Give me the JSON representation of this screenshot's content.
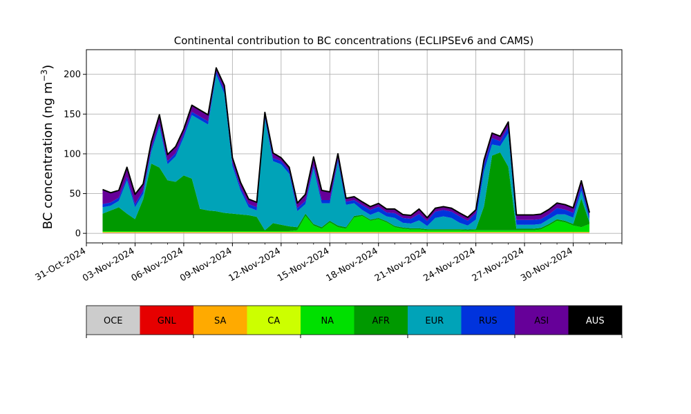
{
  "chart_data": {
    "type": "area",
    "stacked": true,
    "title": "Continental contribution to BC concentrations (ECLIPSEv6 and CAMS)",
    "ylabel": "BC concentration (ng m",
    "ylabel_sup": "−3",
    "ylabel_close": ")",
    "xlabel": "",
    "grid": true,
    "x_start": "2024-11-01",
    "x_end": "2024-12-01",
    "xlim": [
      "2024-10-31",
      "2024-12-03"
    ],
    "ylim": [
      -12,
      231
    ],
    "yticks": [
      0,
      50,
      100,
      150,
      200
    ],
    "xticks": [
      {
        "label": "31-Oct-2024",
        "date": "2024-10-31"
      },
      {
        "label": "03-Nov-2024",
        "date": "2024-11-03"
      },
      {
        "label": "06-Nov-2024",
        "date": "2024-11-06"
      },
      {
        "label": "09-Nov-2024",
        "date": "2024-11-09"
      },
      {
        "label": "12-Nov-2024",
        "date": "2024-11-12"
      },
      {
        "label": "15-Nov-2024",
        "date": "2024-11-15"
      },
      {
        "label": "18-Nov-2024",
        "date": "2024-11-18"
      },
      {
        "label": "21-Nov-2024",
        "date": "2024-11-21"
      },
      {
        "label": "24-Nov-2024",
        "date": "2024-11-24"
      },
      {
        "label": "27-Nov-2024",
        "date": "2024-11-27"
      },
      {
        "label": "30-Nov-2024",
        "date": "2024-11-30"
      }
    ],
    "legend_position": "bottom",
    "series": [
      {
        "name": "OCE",
        "color": "#cccccc",
        "values": [
          0.5,
          0.5,
          0.5,
          0.5,
          0.5,
          0.5,
          0.5,
          0.5,
          0.5,
          0.5,
          0.5,
          0.5,
          0.5,
          0.5,
          0.5,
          0.5,
          0.5,
          0.5,
          0.5,
          0.5,
          0.5,
          0.5,
          0.5,
          0.5,
          0.5,
          0.5,
          0.5,
          0.5,
          0.5,
          0.5,
          0.5,
          0.5,
          0.5,
          0.5,
          0.5,
          0.5,
          0.5,
          0.5,
          0.5,
          0.5,
          0.5,
          0.5,
          0.5,
          0.5,
          0.5,
          0.5,
          0.5,
          0.5,
          0.5,
          0.5,
          0.5,
          0.5,
          0.5,
          0.5,
          0.5,
          0.5,
          0.5,
          0.5,
          0.5,
          0.5,
          0.5
        ]
      },
      {
        "name": "GNL",
        "color": "#e60000",
        "values": [
          0.3,
          0.3,
          0.3,
          0.3,
          0.3,
          0.3,
          0.3,
          0.3,
          0.3,
          0.3,
          0.3,
          0.3,
          0.3,
          0.3,
          0.3,
          0.3,
          0.3,
          0.3,
          0.3,
          0.3,
          0.3,
          0.3,
          0.3,
          0.3,
          0.3,
          0.3,
          0.3,
          0.3,
          0.3,
          0.3,
          0.3,
          0.3,
          0.3,
          0.3,
          0.3,
          0.3,
          0.3,
          0.3,
          0.3,
          0.3,
          0.3,
          0.3,
          0.3,
          0.3,
          0.3,
          0.3,
          0.3,
          0.3,
          0.3,
          0.3,
          0.3,
          0.3,
          0.3,
          0.3,
          0.3,
          0.3,
          0.3,
          0.3,
          0.3,
          0.3,
          0.3
        ]
      },
      {
        "name": "SA",
        "color": "#ffaa00",
        "values": [
          0.5,
          0.5,
          0.5,
          0.5,
          0.5,
          0.5,
          0.5,
          0.5,
          0.5,
          0.5,
          0.5,
          0.5,
          0.5,
          0.5,
          0.5,
          0.5,
          0.5,
          0.5,
          0.5,
          0.5,
          0.5,
          0.5,
          0.5,
          0.5,
          0.5,
          0.5,
          0.5,
          0.5,
          0.5,
          0.5,
          0.5,
          0.5,
          0.5,
          0.5,
          0.5,
          0.5,
          0.5,
          0.5,
          0.5,
          0.5,
          0.5,
          0.5,
          0.5,
          0.5,
          0.5,
          0.5,
          0.5,
          0.5,
          0.5,
          0.5,
          0.5,
          0.5,
          0.5,
          0.5,
          0.5,
          0.5,
          0.5,
          0.5,
          0.5,
          0.5,
          0.5
        ]
      },
      {
        "name": "CA",
        "color": "#ccff00",
        "values": [
          0.5,
          0.5,
          0.5,
          0.5,
          0.5,
          0.5,
          0.5,
          0.5,
          0.5,
          0.5,
          0.5,
          0.5,
          0.5,
          0.5,
          0.5,
          0.5,
          0.5,
          0.5,
          0.5,
          0.5,
          0.5,
          0.5,
          0.5,
          0.5,
          0.5,
          0.5,
          0.5,
          0.5,
          0.5,
          0.5,
          0.5,
          0.5,
          0.5,
          0.5,
          0.5,
          0.5,
          0.5,
          0.5,
          0.5,
          0.5,
          0.5,
          0.5,
          0.5,
          0.5,
          0.5,
          0.5,
          0.5,
          0.5,
          0.5,
          0.5,
          0.5,
          0.5,
          0.5,
          0.5,
          0.5,
          0.5,
          0.5,
          0.5,
          0.5,
          0.5,
          0.5
        ]
      },
      {
        "name": "NA",
        "color": "#00e000",
        "values": [
          1,
          1,
          1,
          1,
          1,
          1,
          1,
          1,
          1,
          1,
          1,
          1,
          1,
          1,
          1,
          1,
          1,
          1,
          1,
          1,
          1,
          1,
          1,
          1,
          2,
          20,
          8,
          4,
          12,
          6,
          4,
          18,
          20,
          14,
          16,
          12,
          6,
          4,
          3,
          3,
          2,
          2,
          2,
          2,
          2,
          1.5,
          2,
          2,
          2,
          2,
          2,
          2,
          2,
          2,
          3,
          8,
          14,
          12,
          8,
          6,
          10
        ]
      },
      {
        "name": "AFR",
        "color": "#009900",
        "values": [
          22,
          26,
          30,
          22,
          15,
          40,
          85,
          80,
          64,
          62,
          70,
          66,
          28,
          26,
          25,
          23,
          22,
          21,
          20,
          18,
          1,
          10,
          8,
          6,
          4,
          3,
          2,
          2,
          2,
          2,
          2,
          2,
          1.5,
          1.5,
          1.5,
          1.5,
          1.5,
          1.5,
          1.5,
          1.5,
          1.5,
          1.5,
          1.5,
          1.5,
          1.5,
          1.5,
          1.5,
          30,
          94,
          98,
          80,
          2,
          2,
          2,
          2,
          2,
          2,
          2,
          2,
          36,
          2
        ]
      },
      {
        "name": "EUR",
        "color": "#00a3b8",
        "values": [
          8,
          6,
          8,
          42,
          15,
          7,
          15,
          52,
          20,
          32,
          48,
          80,
          112,
          108,
          172,
          150,
          60,
          30,
          10,
          8,
          140,
          78,
          76,
          66,
          20,
          12,
          70,
          30,
          22,
          80,
          28,
          16,
          6,
          6,
          8,
          6,
          10,
          6,
          6,
          10,
          4,
          14,
          16,
          14,
          8,
          5,
          12,
          44,
          14,
          8,
          42,
          5,
          5,
          5,
          5,
          6,
          6,
          8,
          8,
          10,
          4
        ]
      },
      {
        "name": "RUS",
        "color": "#0033dd",
        "values": [
          4,
          4,
          4,
          4,
          4,
          4,
          4,
          4,
          4,
          4,
          4,
          4,
          4,
          4,
          4,
          4,
          4,
          4,
          4,
          4,
          4,
          4,
          4,
          4,
          4,
          4,
          4,
          4,
          4,
          4,
          4,
          4,
          6,
          6,
          6,
          5,
          6,
          6,
          6,
          8,
          6,
          8,
          8,
          8,
          8,
          6,
          8,
          8,
          8,
          6,
          8,
          6,
          6,
          6,
          6,
          6,
          8,
          6,
          6,
          6,
          4
        ]
      },
      {
        "name": "ASI",
        "color": "#660099",
        "values": [
          18,
          12,
          9,
          12,
          12,
          8,
          8,
          10,
          8,
          8,
          6,
          8,
          8,
          8,
          4,
          6,
          6,
          6,
          6,
          6,
          4,
          6,
          4,
          4,
          6,
          8,
          10,
          12,
          10,
          6,
          4,
          4,
          4,
          4,
          4,
          4,
          5,
          4,
          4,
          6,
          4,
          4,
          4,
          4,
          4,
          4,
          4,
          6,
          6,
          6,
          6,
          6,
          6,
          6,
          6,
          6,
          6,
          6,
          6,
          6,
          4
        ]
      },
      {
        "name": "AUS",
        "color": "#000000",
        "values": [
          0.3,
          0.3,
          0.3,
          0.3,
          0.3,
          0.3,
          0.3,
          0.3,
          0.3,
          0.3,
          0.3,
          0.3,
          0.3,
          0.3,
          0.3,
          0.3,
          0.3,
          0.3,
          0.3,
          0.3,
          0.3,
          0.3,
          0.3,
          0.3,
          0.3,
          0.3,
          0.3,
          0.3,
          0.3,
          0.3,
          0.3,
          0.3,
          0.3,
          0.3,
          0.3,
          0.3,
          0.3,
          0.3,
          0.3,
          0.3,
          0.3,
          0.3,
          0.3,
          0.3,
          0.3,
          0.3,
          0.3,
          0.3,
          0.3,
          0.3,
          0.3,
          0.3,
          0.3,
          0.3,
          0.3,
          0.3,
          0.3,
          0.3,
          0.3,
          0.3,
          0.3
        ]
      }
    ]
  }
}
